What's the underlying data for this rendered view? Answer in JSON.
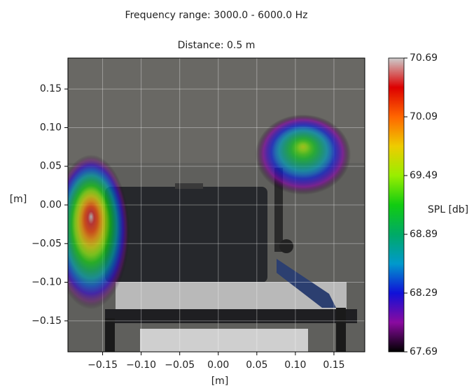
{
  "chart_data": {
    "type": "heatmap-overlay",
    "title": "Frequency range: 3000.0 - 6000.0 Hz",
    "subtitle": "Distance: 0.5 m",
    "x_label": "[m]",
    "y_label": "[m]",
    "xlim": [
      -0.195,
      0.19
    ],
    "ylim": [
      -0.19,
      0.19
    ],
    "xticks": [
      {
        "value": -0.15,
        "label": "−0.15"
      },
      {
        "value": -0.1,
        "label": "−0.10"
      },
      {
        "value": -0.05,
        "label": "−0.05"
      },
      {
        "value": 0,
        "label": "0.00"
      },
      0.05,
      {
        "value": 0.1,
        "label": "0.10"
      },
      0.15
    ],
    "yticks": [
      {
        "value": -0.15,
        "label": "−0.15"
      },
      {
        "value": -0.1,
        "label": "−0.10"
      },
      {
        "value": -0.05,
        "label": "−0.05"
      },
      {
        "value": 0,
        "label": "0.00"
      },
      0.05,
      {
        "value": 0.1,
        "label": "0.10"
      },
      0.15
    ],
    "grid": true,
    "colorbar": {
      "label": "SPL [db]",
      "lim": [
        67.69,
        70.69
      ],
      "ticks": [
        67.69,
        68.29,
        68.89,
        69.49,
        70.09,
        70.69
      ]
    },
    "colormap": [
      "#000000",
      "#8a0aa0",
      "#1010d8",
      "#0099cc",
      "#00aa66",
      "#11cc11",
      "#99ee00",
      "#eecc00",
      "#ff6600",
      "#dd0000",
      "#cccccc"
    ],
    "hotspots": [
      {
        "x": -0.165,
        "y": -0.035,
        "rx": 0.05,
        "ry": 0.1,
        "value": 70.69
      },
      {
        "x": 0.11,
        "y": 0.065,
        "rx": 0.062,
        "ry": 0.052,
        "value": 69.6
      }
    ]
  }
}
